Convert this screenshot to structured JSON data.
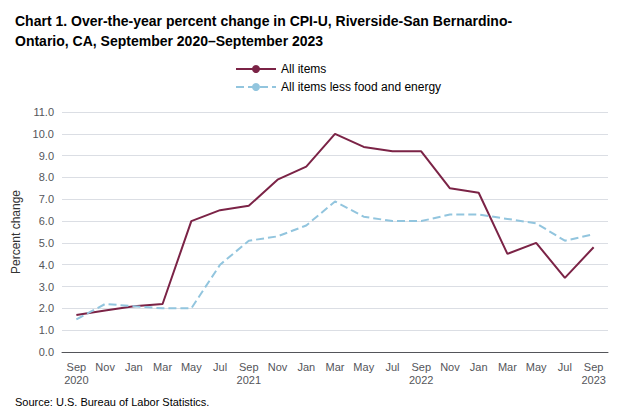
{
  "chart_data": {
    "type": "line",
    "title": "Chart 1. Over-the-year percent change in CPI-U, Riverside-San Bernardino-\nOntario, CA, September 2020–September 2023",
    "ylabel": "Percent change",
    "source": "Source: U.S. Bureau of Labor Statistics.",
    "categories": [
      "Sep\n2020",
      "Nov",
      "Jan",
      "Mar",
      "May",
      "Jul",
      "Sep\n2021",
      "Nov",
      "Jan",
      "Mar",
      "May",
      "Jul",
      "Sep\n2022",
      "Nov",
      "Jan",
      "Mar",
      "May",
      "Jul",
      "Sep\n2023"
    ],
    "series": [
      {
        "name": "All items",
        "color": "#7b2346",
        "line_style": "solid",
        "values": [
          1.7,
          1.9,
          2.1,
          2.2,
          6.0,
          6.5,
          6.7,
          7.9,
          8.5,
          10.0,
          9.4,
          9.2,
          9.2,
          7.5,
          7.3,
          4.5,
          5.0,
          3.4,
          4.8
        ]
      },
      {
        "name": "All items less food and energy",
        "color": "#92c5de",
        "line_style": "dashed",
        "values": [
          1.5,
          2.2,
          2.1,
          2.0,
          2.0,
          4.0,
          5.1,
          5.3,
          5.8,
          6.9,
          6.2,
          6.0,
          6.0,
          6.3,
          6.3,
          6.1,
          5.9,
          5.1,
          5.4
        ]
      }
    ],
    "ylim": [
      0.0,
      11.0
    ],
    "yticks": [
      {
        "value": 0,
        "label": "0.0"
      },
      {
        "value": 1,
        "label": "1.0"
      },
      {
        "value": 2,
        "label": "2.0"
      },
      {
        "value": 3,
        "label": "3.0"
      },
      {
        "value": 4,
        "label": "4.0"
      },
      {
        "value": 5,
        "label": "5.0"
      },
      {
        "value": 6,
        "label": "6.0"
      },
      {
        "value": 7,
        "label": "7.0"
      },
      {
        "value": 8,
        "label": "8.0"
      },
      {
        "value": 9,
        "label": "9.0"
      },
      {
        "value": 10,
        "label": "10.0"
      },
      {
        "value": 11,
        "label": "11.0"
      }
    ],
    "grid": true,
    "legend": "top"
  }
}
